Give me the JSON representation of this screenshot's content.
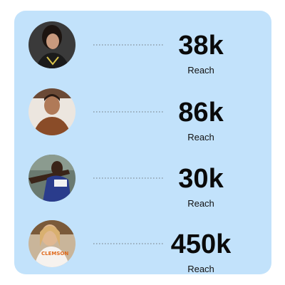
{
  "items": [
    {
      "value": "38k",
      "label": "Reach"
    },
    {
      "value": "86k",
      "label": "Reach"
    },
    {
      "value": "30k",
      "label": "Reach"
    },
    {
      "value": "450k",
      "label": "Reach"
    }
  ]
}
